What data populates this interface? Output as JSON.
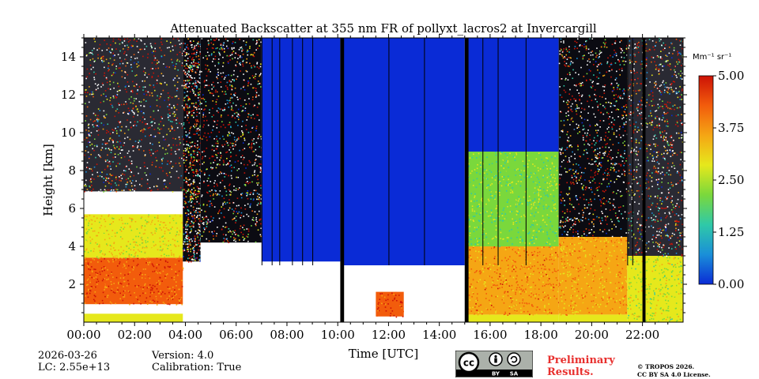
{
  "chart_data": {
    "type": "heatmap",
    "title": "Attenuated Backscatter at 355 nm FR of pollyxt_lacros2 at Invercargill",
    "xlabel": "Time [UTC]",
    "ylabel": "Height [km]",
    "xlim": [
      0,
      23.6
    ],
    "ylim": [
      0,
      15
    ],
    "x_ticks": [
      {
        "value": 0,
        "label": "00:00"
      },
      {
        "value": 2,
        "label": "02:00"
      },
      {
        "value": 4,
        "label": "04:00"
      },
      {
        "value": 6,
        "label": "06:00"
      },
      {
        "value": 8,
        "label": "08:00"
      },
      {
        "value": 10,
        "label": "10:00"
      },
      {
        "value": 12,
        "label": "12:00"
      },
      {
        "value": 14,
        "label": "14:00"
      },
      {
        "value": 16,
        "label": "16:00"
      },
      {
        "value": 18,
        "label": "18:00"
      },
      {
        "value": 20,
        "label": "20:00"
      },
      {
        "value": 22,
        "label": "22:00"
      }
    ],
    "y_ticks": [
      {
        "value": 2,
        "label": "2"
      },
      {
        "value": 4,
        "label": "4"
      },
      {
        "value": 6,
        "label": "6"
      },
      {
        "value": 8,
        "label": "8"
      },
      {
        "value": 10,
        "label": "10"
      },
      {
        "value": 12,
        "label": "12"
      },
      {
        "value": 14,
        "label": "14"
      }
    ],
    "colorbar": {
      "unit": "Mm⁻¹ sr⁻¹",
      "range": [
        0,
        5
      ],
      "ticks": [
        {
          "value": 0,
          "label": "0.00"
        },
        {
          "value": 1.25,
          "label": "1.25"
        },
        {
          "value": 2.5,
          "label": "2.50"
        },
        {
          "value": 3.75,
          "label": "3.75"
        },
        {
          "value": 5,
          "label": "5.00"
        }
      ],
      "colors": [
        "#0a2bd6",
        "#1a8fd8",
        "#2fc9a8",
        "#7ad83c",
        "#e6e81c",
        "#f5a614",
        "#f25c0c",
        "#cc1206"
      ]
    },
    "regions": [
      {
        "t0": 0.0,
        "t1": 3.9,
        "z0": 0.0,
        "z1": 0.45,
        "kind": "surface",
        "value": 2.8
      },
      {
        "t0": 0.0,
        "t1": 3.9,
        "z0": 0.45,
        "z1": 0.95,
        "kind": "clear",
        "value": null
      },
      {
        "t0": 0.0,
        "t1": 3.9,
        "z0": 0.95,
        "z1": 3.4,
        "kind": "aerosol",
        "value": 4.2
      },
      {
        "t0": 0.0,
        "t1": 3.9,
        "z0": 3.4,
        "z1": 5.7,
        "kind": "aerosol",
        "value": 3.0
      },
      {
        "t0": 0.0,
        "t1": 3.9,
        "z0": 5.7,
        "z1": 6.9,
        "kind": "cloud",
        "value": null
      },
      {
        "t0": 0.0,
        "t1": 3.9,
        "z0": 6.9,
        "z1": 15.0,
        "kind": "noise",
        "value": 3.0
      },
      {
        "t0": 3.9,
        "t1": 4.6,
        "z0": 3.2,
        "z1": 15.0,
        "kind": "noise-dark",
        "value": 1.0
      },
      {
        "t0": 4.6,
        "t1": 7.0,
        "z0": 0.4,
        "z1": 4.2,
        "kind": "cloud",
        "value": null
      },
      {
        "t0": 4.6,
        "t1": 7.0,
        "z0": 4.2,
        "z1": 15.0,
        "kind": "noise-dark",
        "value": 1.5
      },
      {
        "t0": 7.0,
        "t1": 10.1,
        "z0": 0.4,
        "z1": 3.2,
        "kind": "cloud",
        "value": null
      },
      {
        "t0": 7.0,
        "t1": 10.1,
        "z0": 3.2,
        "z1": 15.0,
        "kind": "clean",
        "value": 0.0
      },
      {
        "t0": 10.2,
        "t1": 15.0,
        "z0": 0.4,
        "z1": 3.0,
        "kind": "cloud",
        "value": null
      },
      {
        "t0": 10.2,
        "t1": 15.0,
        "z0": 3.0,
        "z1": 15.0,
        "kind": "clean",
        "value": 0.0
      },
      {
        "t0": 11.5,
        "t1": 12.6,
        "z0": 0.3,
        "z1": 1.6,
        "kind": "aerosol",
        "value": 4.6
      },
      {
        "t0": 15.1,
        "t1": 18.7,
        "z0": 0.0,
        "z1": 0.4,
        "kind": "surface",
        "value": 2.8
      },
      {
        "t0": 15.1,
        "t1": 18.7,
        "z0": 0.4,
        "z1": 4.0,
        "kind": "aerosol",
        "value": 3.8
      },
      {
        "t0": 15.1,
        "t1": 18.7,
        "z0": 4.0,
        "z1": 9.0,
        "kind": "aerosol",
        "value": 2.2
      },
      {
        "t0": 15.1,
        "t1": 18.7,
        "z0": 9.0,
        "z1": 15.0,
        "kind": "clean",
        "value": 0.3
      },
      {
        "t0": 18.7,
        "t1": 21.4,
        "z0": 0.0,
        "z1": 0.4,
        "kind": "surface",
        "value": 2.8
      },
      {
        "t0": 18.7,
        "t1": 21.4,
        "z0": 0.4,
        "z1": 4.5,
        "kind": "aerosol",
        "value": 3.5
      },
      {
        "t0": 18.7,
        "t1": 21.4,
        "z0": 4.5,
        "z1": 15.0,
        "kind": "noise-dark",
        "value": 1.5
      },
      {
        "t0": 21.4,
        "t1": 23.6,
        "z0": 0.0,
        "z1": 3.5,
        "kind": "aerosol",
        "value": 2.6
      },
      {
        "t0": 21.4,
        "t1": 23.6,
        "z0": 3.5,
        "z1": 15.0,
        "kind": "noise",
        "value": 2.5
      }
    ],
    "gaps": [
      {
        "t0": 10.1,
        "t1": 10.25
      },
      {
        "t0": 15.0,
        "t1": 15.15
      },
      {
        "t0": 22.0,
        "t1": 22.12
      }
    ],
    "thin_gaps": [
      7.0,
      7.4,
      7.7,
      8.2,
      8.6,
      9.0,
      12.0,
      13.4,
      15.7,
      16.3,
      17.4,
      21.4,
      21.6
    ]
  },
  "info": {
    "date": "2026-03-26",
    "lc": "LC: 2.55e+13",
    "version": "Version: 4.0",
    "calibration": "Calibration: True"
  },
  "license": {
    "badge_cc": "cc",
    "badge_by": "BY",
    "badge_sa": "SA",
    "preliminary_line1": "Preliminary",
    "preliminary_line2": "Results.",
    "copyright_line1": "© TROPOS 2026.",
    "copyright_line2": "CC BY SA 4.0 License."
  }
}
